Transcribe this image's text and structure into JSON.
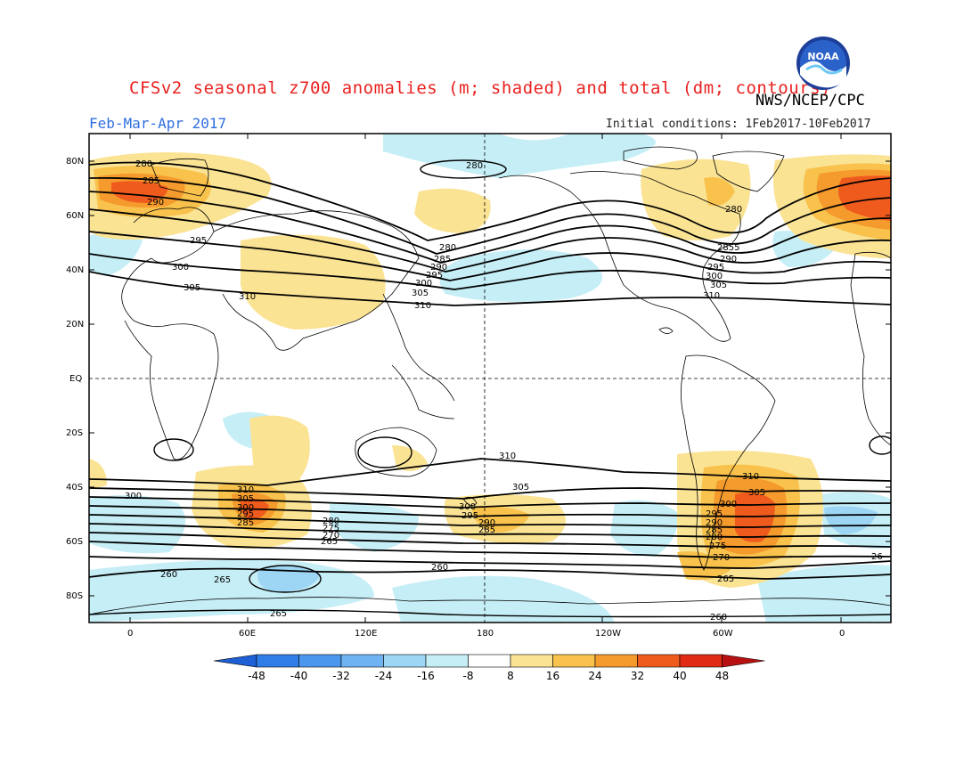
{
  "title": "CFSv2 seasonal z700 anomalies (m; shaded) and total (dm; contours)",
  "agency": "NWS/NCEP/CPC",
  "logo_text": "NOAA",
  "season": "Feb-Mar-Apr 2017",
  "initial_conditions": "Initial conditions: 1Feb2017-10Feb2017",
  "lat_labels": [
    "80N",
    "60N",
    "40N",
    "20N",
    "EQ",
    "20S",
    "40S",
    "60S",
    "80S"
  ],
  "lon_labels": [
    "0",
    "60E",
    "120E",
    "180",
    "120W",
    "60W",
    "0"
  ],
  "colorbar": {
    "labels": [
      "-48",
      "-40",
      "-32",
      "-24",
      "-16",
      "-8",
      "8",
      "16",
      "24",
      "32",
      "40",
      "48"
    ],
    "colors": [
      "#1f5fd6",
      "#2f7ee8",
      "#4b97ee",
      "#6fb3f2",
      "#9dd6f4",
      "#c6eef6",
      "#ffffff",
      "#fbe394",
      "#f8c24c",
      "#f59a2c",
      "#ef5a1d",
      "#e02a13",
      "#b81111"
    ]
  },
  "contour_labels": {
    "nh": [
      "280",
      "285",
      "290",
      "295",
      "300",
      "305",
      "310"
    ],
    "sh": [
      "310",
      "305",
      "300",
      "295",
      "290",
      "285",
      "280",
      "275",
      "270",
      "265",
      "260"
    ],
    "other": [
      "280",
      "285",
      "290",
      "295",
      "300",
      "305",
      "310",
      "280",
      "285",
      "290",
      "295",
      "300",
      "305",
      "310",
      "2855",
      "26"
    ]
  }
}
